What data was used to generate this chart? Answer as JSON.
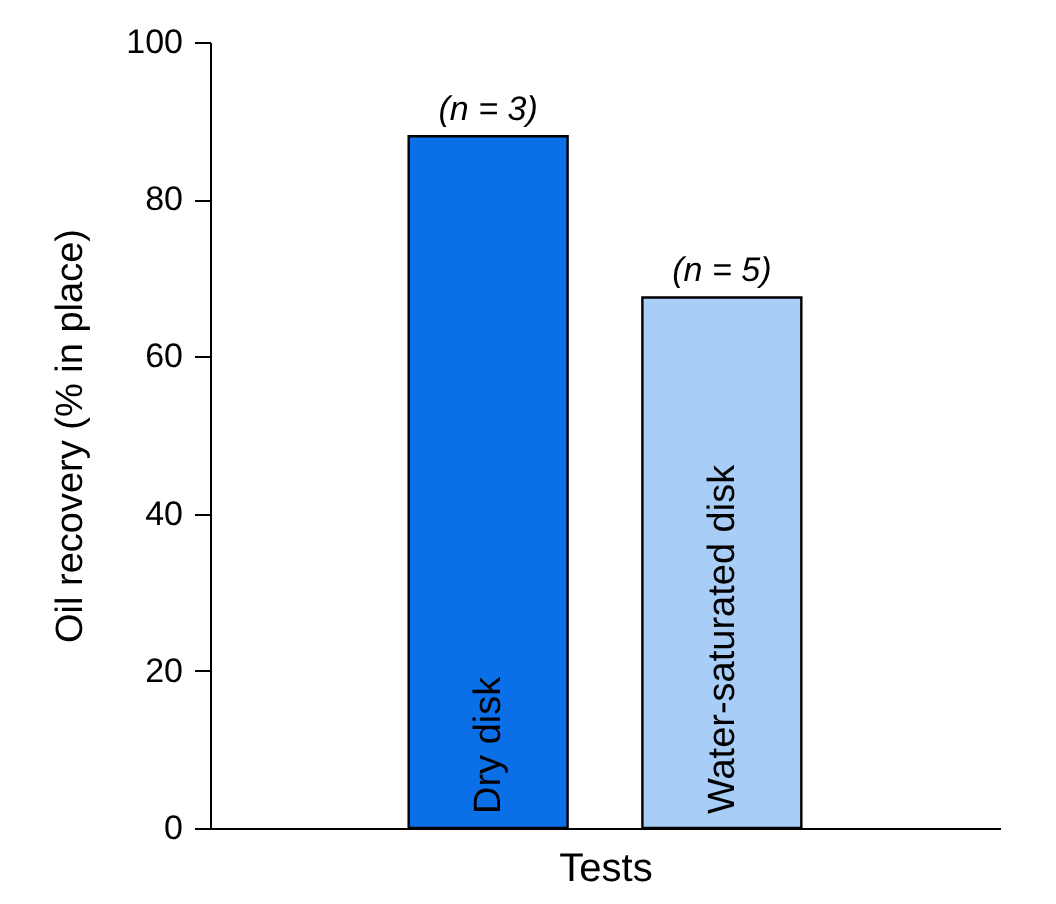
{
  "chart_data": {
    "type": "bar",
    "categories": [
      "Dry disk",
      "Water-saturated disk"
    ],
    "values": [
      88,
      67.5
    ],
    "colors": [
      "#0b6fe8",
      "#a8cdf7"
    ],
    "xlabel": "Tests",
    "ylabel": "Oil recovery (% in place)",
    "ylim": [
      0,
      100
    ],
    "yticks": [
      0,
      20,
      40,
      60,
      80,
      100
    ],
    "grid": false,
    "tick_labels": "y",
    "annotations": [
      {
        "text": "(n = 3)",
        "x": "Dry disk",
        "y": 88
      },
      {
        "text": "(n = 5)",
        "x": "Water-saturated disk",
        "y": 67.5
      }
    ]
  }
}
